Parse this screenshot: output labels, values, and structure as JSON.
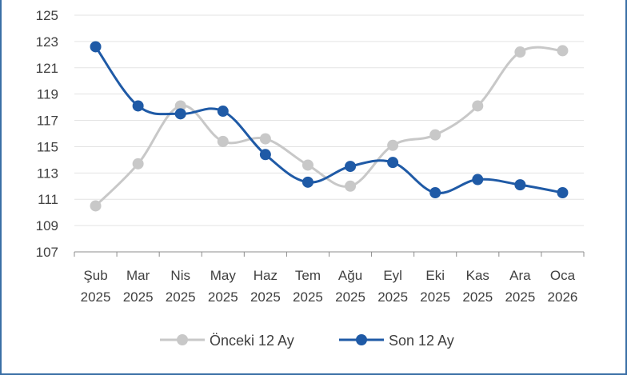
{
  "chart_data": {
    "type": "line",
    "categories": [
      [
        "Şub",
        "2025"
      ],
      [
        "Mar",
        "2025"
      ],
      [
        "Nis",
        "2025"
      ],
      [
        "May",
        "2025"
      ],
      [
        "Haz",
        "2025"
      ],
      [
        "Tem",
        "2025"
      ],
      [
        "Ağu",
        "2025"
      ],
      [
        "Eyl",
        "2025"
      ],
      [
        "Eki",
        "2025"
      ],
      [
        "Kas",
        "2025"
      ],
      [
        "Ara",
        "2025"
      ],
      [
        "Oca",
        "2026"
      ]
    ],
    "ylim": [
      107,
      125
    ],
    "yticks": [
      107,
      109,
      111,
      113,
      115,
      117,
      119,
      121,
      123,
      125
    ],
    "grid": true,
    "legend_position": "bottom",
    "series": [
      {
        "name": "Önceki 12 Ay",
        "color": "#c8c8c8",
        "values": [
          110.5,
          113.7,
          118.1,
          115.4,
          115.6,
          113.6,
          112.0,
          115.1,
          115.9,
          118.1,
          122.2,
          122.3
        ]
      },
      {
        "name": "Son 12 Ay",
        "color": "#1f5aa6",
        "values": [
          122.6,
          118.1,
          117.5,
          117.7,
          114.4,
          112.3,
          113.5,
          113.8,
          111.5,
          112.5,
          112.1,
          111.5
        ]
      }
    ]
  }
}
